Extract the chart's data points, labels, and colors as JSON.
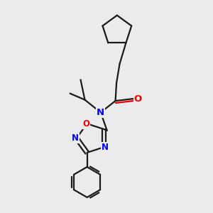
{
  "background_color": "#ebebeb",
  "atom_color_N": "#0000ee",
  "atom_color_O": "#ee0000",
  "line_color": "#1a1a1a",
  "line_width": 1.6,
  "figsize": [
    3.0,
    3.0
  ],
  "dpi": 100,
  "xlim": [
    0,
    10
  ],
  "ylim": [
    0,
    10
  ]
}
